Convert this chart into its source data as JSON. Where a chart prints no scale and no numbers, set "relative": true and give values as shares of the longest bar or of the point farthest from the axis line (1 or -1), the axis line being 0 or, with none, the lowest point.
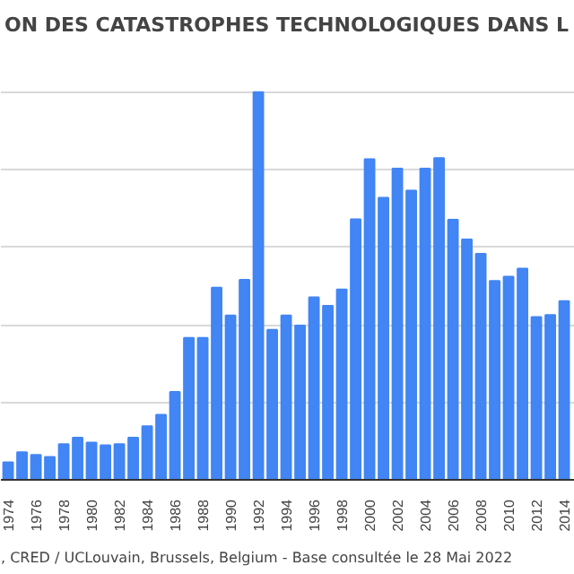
{
  "chart_data": {
    "type": "bar",
    "title": "ON DES CATASTROPHES TECHNOLOGIQUES DANS L",
    "categories": [
      "1974",
      null,
      "1976",
      null,
      "1978",
      null,
      "1980",
      null,
      "1982",
      null,
      "1984",
      null,
      "1986",
      null,
      "1988",
      null,
      "1990",
      null,
      "1992",
      null,
      "1994",
      null,
      "1996",
      null,
      "1998",
      null,
      "2000",
      null,
      "2002",
      null,
      "2004",
      null,
      "2006",
      null,
      "2008",
      null,
      "2010",
      null,
      "2012",
      null,
      "2014"
    ],
    "values": [
      0.045,
      0.071,
      0.064,
      0.059,
      0.092,
      0.109,
      0.096,
      0.089,
      0.092,
      0.109,
      0.138,
      0.168,
      0.227,
      0.366,
      0.366,
      0.496,
      0.424,
      0.516,
      1,
      0.387,
      0.424,
      0.398,
      0.471,
      0.449,
      0.491,
      0.672,
      0.827,
      0.728,
      0.803,
      0.746,
      0.803,
      0.83,
      0.671,
      0.62,
      0.583,
      0.513,
      0.524,
      0.545,
      0.42,
      0.425,
      0.461
    ],
    "color": "#4285f4",
    "relative": true,
    "grid": "y",
    "annotations": [
      ", CRED / UCLouvain, Brussels, Belgium - Base consultée le 28 Mai 2022"
    ]
  }
}
